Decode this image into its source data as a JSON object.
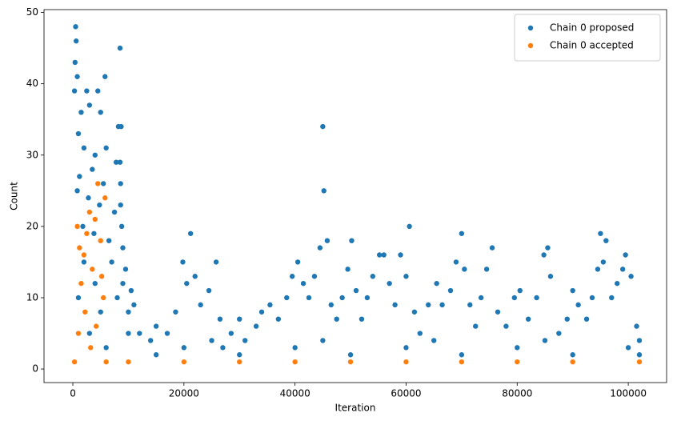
{
  "chart_data": {
    "type": "scatter",
    "x_label": "Iteration",
    "y_label": "Count",
    "xlim": [
      -5190,
      106900
    ],
    "ylim": [
      -1.9,
      50.4
    ],
    "xticks": [
      0,
      20000,
      40000,
      60000,
      80000,
      100000
    ],
    "yticks": [
      0,
      10,
      20,
      30,
      40,
      50
    ],
    "legend": "upper right",
    "series": [
      {
        "name": "Chain 0 proposed",
        "color": "#1f77b4",
        "x": [
          500,
          600,
          400,
          800,
          300,
          2500,
          4500,
          5800,
          8500,
          1500,
          3000,
          5000,
          8200,
          8700,
          1000,
          2000,
          4000,
          6000,
          7800,
          8500,
          3500,
          1200,
          5500,
          8600,
          800,
          2800,
          4800,
          7500,
          8600,
          1800,
          3800,
          6500,
          8800,
          9000,
          7000,
          9500,
          10500,
          11000,
          10000,
          12000,
          14000,
          15000,
          17000,
          18500,
          19800,
          20500,
          21200,
          22000,
          23000,
          24500,
          25800,
          26500,
          27000,
          28500,
          30000,
          31000,
          33000,
          34000,
          35500,
          37000,
          38500,
          39500,
          40500,
          41500,
          42500,
          43500,
          44500,
          45000,
          45200,
          45800,
          46500,
          47500,
          48500,
          49500,
          50200,
          51000,
          52000,
          53000,
          54000,
          55200,
          56000,
          57000,
          58000,
          59000,
          60000,
          60600,
          61500,
          62500,
          64000,
          65500,
          66500,
          68000,
          69000,
          70000,
          70500,
          71500,
          72500,
          73500,
          74500,
          75500,
          76500,
          78000,
          79500,
          80500,
          82000,
          83500,
          84800,
          85500,
          86000,
          87500,
          89000,
          90000,
          91000,
          92500,
          93500,
          94500,
          95000,
          95500,
          96000,
          97000,
          98000,
          99000,
          99500,
          100500,
          101500,
          102000,
          15000,
          30000,
          50000,
          70000,
          90000,
          102000,
          20000,
          40000,
          60000,
          80000,
          100000,
          25000,
          45000,
          65000,
          85000,
          1000,
          2000,
          3000,
          4000,
          5000,
          6000,
          8000,
          9000,
          10000
        ],
        "values": [
          48,
          46,
          43,
          41,
          39,
          39,
          39,
          41,
          45,
          36,
          37,
          36,
          34,
          34,
          33,
          31,
          30,
          31,
          29,
          29,
          28,
          27,
          26,
          26,
          25,
          24,
          23,
          22,
          23,
          20,
          19,
          18,
          20,
          17,
          15,
          14,
          11,
          9,
          8,
          5,
          4,
          6,
          5,
          8,
          15,
          12,
          19,
          13,
          9,
          11,
          15,
          7,
          3,
          5,
          7,
          4,
          6,
          8,
          9,
          7,
          10,
          13,
          15,
          12,
          10,
          13,
          17,
          34,
          25,
          18,
          9,
          7,
          10,
          14,
          18,
          11,
          7,
          10,
          13,
          16,
          16,
          12,
          9,
          16,
          13,
          20,
          8,
          5,
          9,
          12,
          9,
          11,
          15,
          19,
          14,
          9,
          6,
          10,
          14,
          17,
          8,
          6,
          10,
          11,
          7,
          10,
          16,
          17,
          13,
          5,
          7,
          11,
          9,
          7,
          10,
          14,
          19,
          15,
          18,
          10,
          12,
          14,
          16,
          13,
          6,
          4,
          2,
          2,
          2,
          2,
          2,
          2,
          3,
          3,
          3,
          3,
          3,
          4,
          4,
          4,
          4,
          10,
          15,
          5,
          12,
          8,
          3,
          10,
          12,
          5
        ]
      },
      {
        "name": "Chain 0 accepted",
        "color": "#ff7f0e",
        "x": [
          300,
          1000,
          1500,
          2000,
          2500,
          3000,
          3500,
          4000,
          4500,
          5000,
          5500,
          5800,
          2200,
          3200,
          4200,
          5200,
          800,
          1200,
          6000,
          20000,
          40000,
          60000,
          80000,
          102000,
          10000,
          30000,
          50000,
          70000,
          90000
        ],
        "values": [
          1,
          5,
          12,
          16,
          19,
          22,
          14,
          21,
          26,
          18,
          10,
          24,
          8,
          3,
          6,
          13,
          20,
          17,
          1,
          1,
          1,
          1,
          1,
          1,
          1,
          1,
          1,
          1,
          1
        ]
      }
    ]
  }
}
